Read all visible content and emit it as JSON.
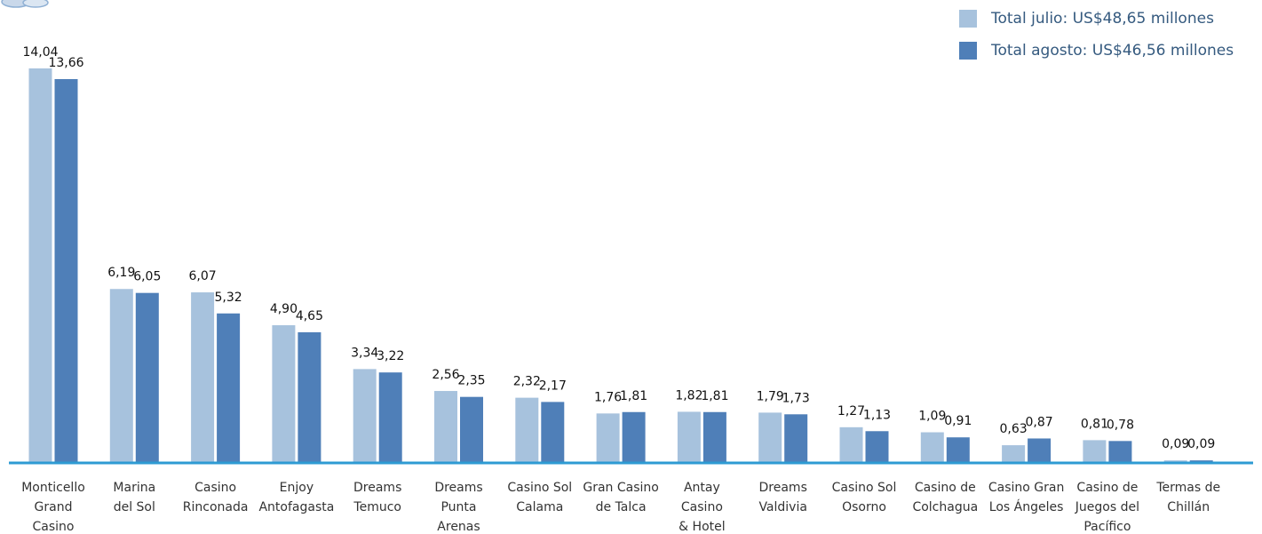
{
  "legend": {
    "placement": "top-right",
    "items": [
      {
        "label": "Total julio: US$48,65 millones",
        "color": "#a7c2dd"
      },
      {
        "label": "Total agosto: US$46,56 millones",
        "color": "#4f7fb8"
      }
    ]
  },
  "chart_data": {
    "type": "bar",
    "title": "",
    "xlabel": "",
    "ylabel": "",
    "ylim": [
      0,
      14.04
    ],
    "grid": false,
    "axis_color": "#2e9bd3",
    "categories": [
      "Monticello Grand Casino",
      "Marina del Sol",
      "Casino Rinconada",
      "Enjoy Antofagasta",
      "Dreams Temuco",
      "Dreams Punta Arenas",
      "Casino Sol Calama",
      "Gran Casino de Talca",
      "Antay Casino & Hotel",
      "Dreams Valdivia",
      "Casino Sol Osorno",
      "Casino de Colchagua",
      "Casino Gran Los Ángeles",
      "Casino de Juegos del Pacífico",
      "Termas de Chillán"
    ],
    "category_lines": [
      [
        "Monticello",
        "Grand",
        "Casino"
      ],
      [
        "Marina",
        "del Sol"
      ],
      [
        "Casino",
        "Rinconada"
      ],
      [
        "Enjoy",
        "Antofagasta"
      ],
      [
        "Dreams",
        "Temuco"
      ],
      [
        "Dreams",
        "Punta",
        "Arenas"
      ],
      [
        "Casino Sol",
        "Calama"
      ],
      [
        "Gran Casino",
        "de Talca"
      ],
      [
        "Antay",
        "Casino",
        "& Hotel"
      ],
      [
        "Dreams",
        "Valdivia"
      ],
      [
        "Casino Sol",
        "Osorno"
      ],
      [
        "Casino de",
        "Colchagua"
      ],
      [
        "Casino Gran",
        "Los Ángeles"
      ],
      [
        "Casino de",
        "Juegos del",
        "Pacífico"
      ],
      [
        "Termas de",
        "Chillán"
      ]
    ],
    "series": [
      {
        "color": "#a7c2dd",
        "values": [
          14.04,
          6.19,
          6.07,
          4.9,
          3.34,
          2.56,
          2.32,
          1.76,
          1.82,
          1.79,
          1.27,
          1.09,
          0.63,
          0.81,
          0.09
        ],
        "labels": [
          "14,04",
          "6,19",
          "6,07",
          "4,90",
          "3,34",
          "2,56",
          "2,32",
          "1,76",
          "1,82",
          "1,79",
          "1,27",
          "1,09",
          "0,63",
          "0,81",
          "0,09"
        ]
      },
      {
        "color": "#4f7fb8",
        "values": [
          13.66,
          6.05,
          5.32,
          4.65,
          3.22,
          2.35,
          2.17,
          1.81,
          1.81,
          1.73,
          1.13,
          0.91,
          0.87,
          0.78,
          0.09
        ],
        "labels": [
          "13,66",
          "6,05",
          "5,32",
          "4,65",
          "3,22",
          "2,35",
          "2,17",
          "1,81",
          "1,81",
          "1,73",
          "1,13",
          "0,91",
          "0,87",
          "0,78",
          "0,09"
        ]
      }
    ]
  }
}
